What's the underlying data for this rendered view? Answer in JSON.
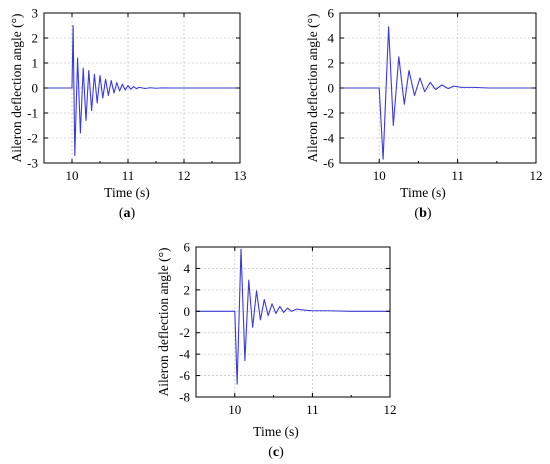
{
  "chart_data": [
    {
      "type": "line",
      "panel_label": "(a)",
      "panel_letter": "a",
      "xlabel": "Time (s)",
      "ylabel": "Aileron deflection angle (°)",
      "xlim": [
        9.5,
        13
      ],
      "ylim": [
        -3,
        3
      ],
      "xticks": [
        10,
        11,
        12,
        13
      ],
      "yticks": [
        -3,
        -2,
        -1,
        0,
        1,
        2,
        3
      ],
      "grid": true,
      "line_color": "#3b3bd6",
      "series": [
        {
          "x": [
            9.5,
            10.0,
            10.02,
            10.05,
            10.1,
            10.15,
            10.2,
            10.25,
            10.3,
            10.35,
            10.4,
            10.45,
            10.5,
            10.55,
            10.6,
            10.65,
            10.7,
            10.75,
            10.8,
            10.85,
            10.9,
            10.95,
            11.0,
            11.05,
            11.1,
            11.15,
            11.2,
            11.3,
            11.4,
            11.5,
            11.6,
            11.8,
            12.0,
            13.0
          ],
          "y": [
            0,
            0,
            2.5,
            -2.7,
            1.2,
            -1.8,
            0.8,
            -1.3,
            0.7,
            -0.9,
            0.55,
            -0.6,
            0.5,
            -0.4,
            0.35,
            -0.3,
            0.3,
            -0.2,
            0.22,
            -0.12,
            0.15,
            -0.08,
            0.1,
            -0.05,
            0.06,
            -0.03,
            0.03,
            -0.02,
            0.01,
            -0.01,
            0.005,
            0,
            0,
            0
          ]
        }
      ]
    },
    {
      "type": "line",
      "panel_label": "(b)",
      "panel_letter": "b",
      "xlabel": "Time (s)",
      "ylabel": "Aileron deflection angle (°)",
      "xlim": [
        9.5,
        12
      ],
      "ylim": [
        -6,
        6
      ],
      "xticks": [
        10,
        11,
        12
      ],
      "yticks": [
        -6,
        -4,
        -2,
        0,
        2,
        4,
        6
      ],
      "grid": true,
      "line_color": "#3b3bd6",
      "series": [
        {
          "x": [
            9.5,
            10.0,
            10.05,
            10.12,
            10.18,
            10.25,
            10.32,
            10.38,
            10.45,
            10.52,
            10.58,
            10.65,
            10.72,
            10.8,
            10.88,
            10.95,
            11.05,
            11.2,
            11.4,
            12.0
          ],
          "y": [
            0,
            0,
            -5.7,
            4.9,
            -3.0,
            2.5,
            -1.3,
            1.4,
            -0.6,
            0.8,
            -0.3,
            0.45,
            -0.12,
            0.25,
            -0.05,
            0.15,
            0.05,
            0.05,
            0,
            0
          ]
        }
      ]
    },
    {
      "type": "line",
      "panel_label": "(c)",
      "panel_letter": "c",
      "xlabel": "Time (s)",
      "ylabel": "Aileron deflection angle (°)",
      "xlim": [
        9.5,
        12
      ],
      "ylim": [
        -8,
        6
      ],
      "xticks": [
        10,
        11,
        12
      ],
      "yticks": [
        -8,
        -6,
        -4,
        -2,
        0,
        2,
        4,
        6
      ],
      "grid": true,
      "line_color": "#3b3bd6",
      "series": [
        {
          "x": [
            9.5,
            10.0,
            10.03,
            10.08,
            10.13,
            10.18,
            10.23,
            10.28,
            10.33,
            10.38,
            10.43,
            10.48,
            10.53,
            10.58,
            10.63,
            10.68,
            10.73,
            10.8,
            10.9,
            11.0,
            11.2,
            11.5,
            12.0
          ],
          "y": [
            0,
            0,
            -6.8,
            5.8,
            -4.6,
            2.9,
            -1.5,
            1.9,
            -0.8,
            1.1,
            -0.4,
            0.7,
            -0.2,
            0.45,
            -0.1,
            0.3,
            0.0,
            0.2,
            0.1,
            0.05,
            0.05,
            0,
            0
          ]
        }
      ]
    }
  ]
}
